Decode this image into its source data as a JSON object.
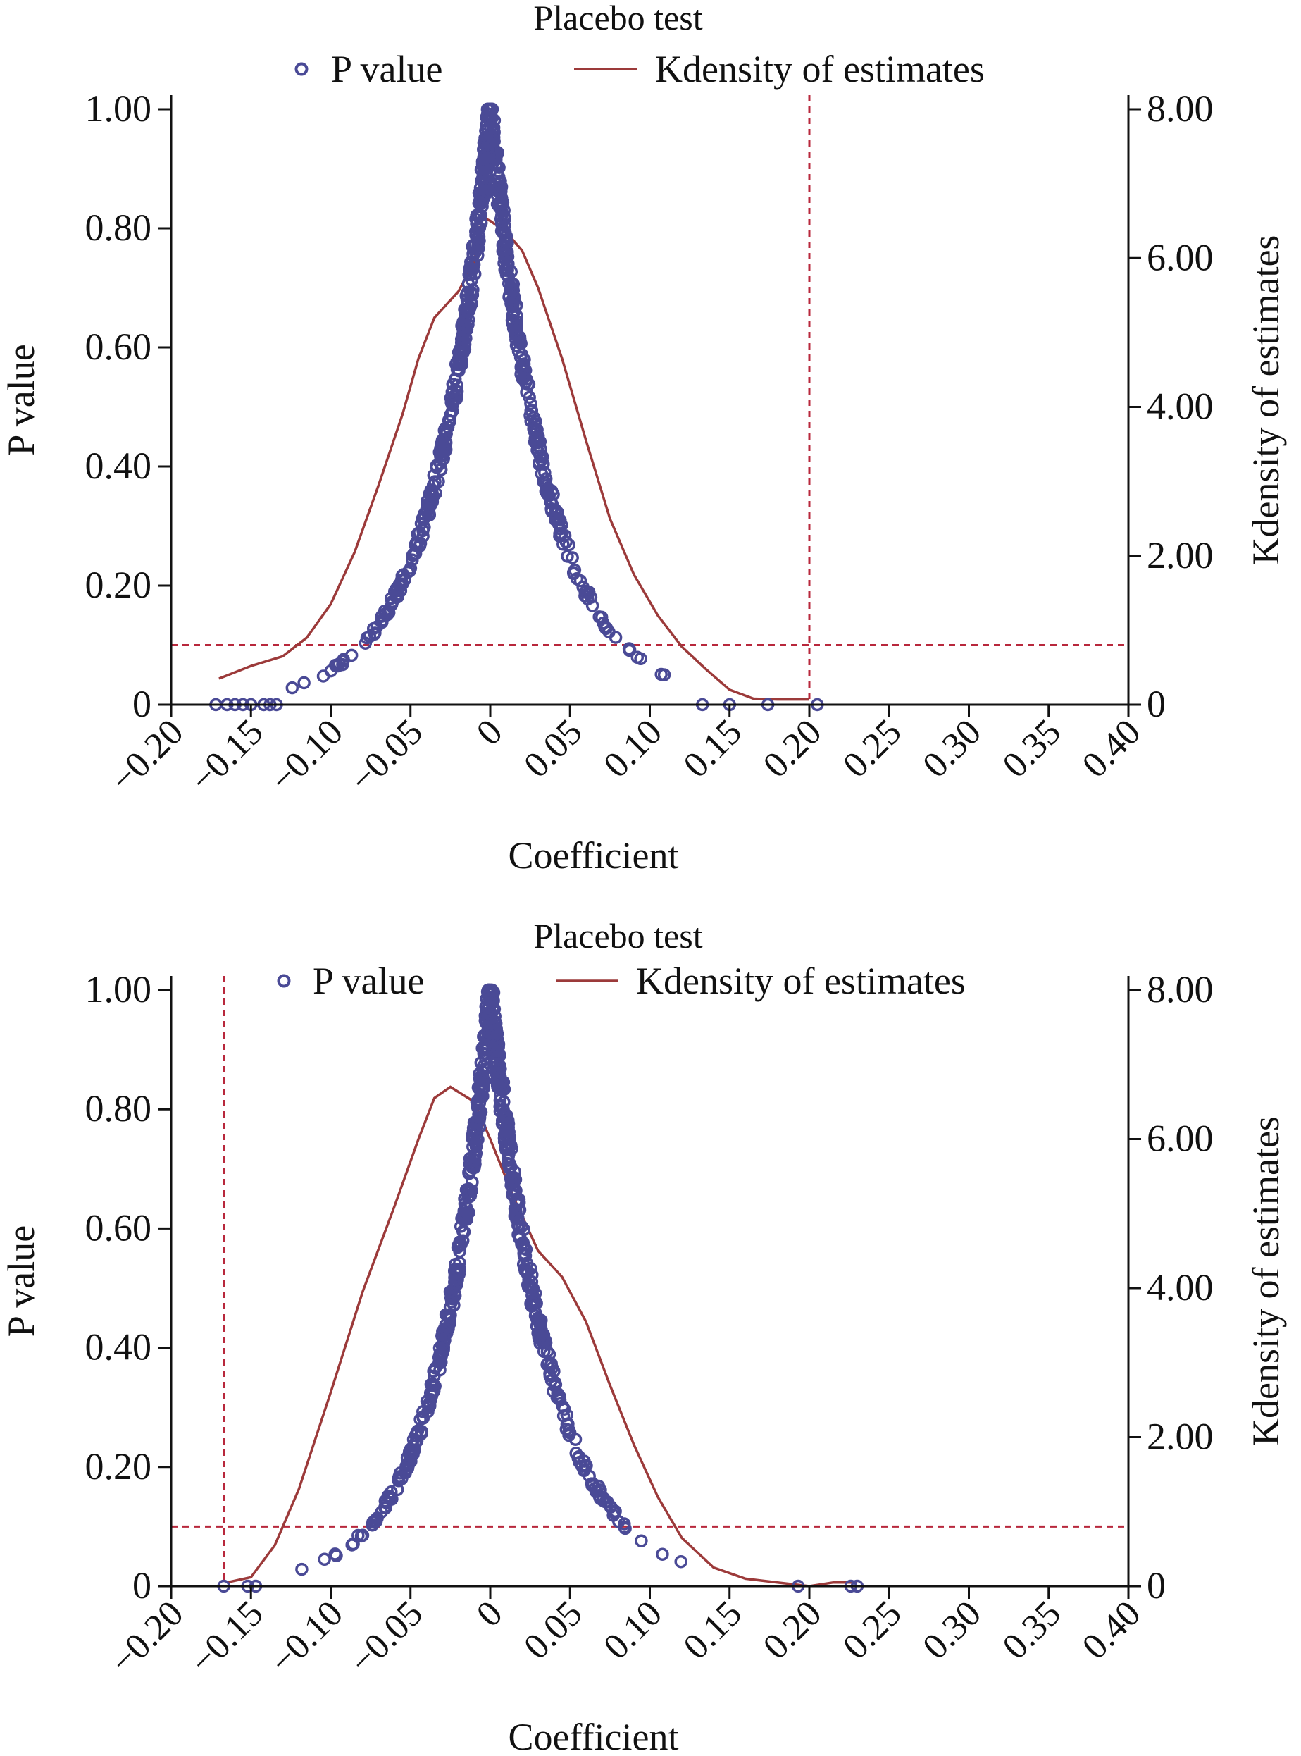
{
  "colors": {
    "p_value": "#4a4a96",
    "kdensity": "#9c3a3a",
    "reference_line": "#b8283c",
    "axis": "#111111",
    "background": "#ffffff"
  },
  "chart_data": [
    {
      "type": "scatter",
      "title": "Placebo test",
      "xlabel": "Coefficient",
      "ylabel": "P value",
      "y2label": "Kdensity of estimates",
      "xlim": [
        -0.2,
        0.4
      ],
      "ylim": [
        0,
        1
      ],
      "y2lim": [
        0,
        8
      ],
      "x_ticks": [
        -0.2,
        -0.15,
        -0.1,
        -0.05,
        0,
        0.05,
        0.1,
        0.15,
        0.2,
        0.25,
        0.3,
        0.35,
        0.4
      ],
      "x_tick_labels": [
        "−0.20",
        "−0.15",
        "−0.10",
        "−0.05",
        "0",
        "0.05",
        "0.10",
        "0.15",
        "0.20",
        "0.25",
        "0.30",
        "0.35",
        "0.40"
      ],
      "y_ticks": [
        0,
        0.2,
        0.4,
        0.6,
        0.8,
        1.0
      ],
      "y_tick_labels": [
        "0",
        "0.20",
        "0.40",
        "0.60",
        "0.80",
        "1.00"
      ],
      "y2_ticks": [
        0,
        2,
        4,
        6,
        8
      ],
      "y2_tick_labels": [
        "0",
        "2.00",
        "4.00",
        "6.00",
        "8.00"
      ],
      "grid": false,
      "legend": {
        "position": "top",
        "items": [
          "P value",
          "Kdensity of estimates"
        ]
      },
      "reference_lines": {
        "vertical_x": 0.2,
        "horizontal_p": 0.1
      },
      "series": [
        {
          "name": "P value",
          "kind": "scatter",
          "axis": "left",
          "profile": {
            "peak_x": 0.0,
            "spread_left": 0.035,
            "spread_right": 0.036,
            "shape": "exp-abs",
            "x_range": [
              -0.17,
              0.135
            ],
            "points": 620
          },
          "outliers": [
            [
              -0.172,
              0
            ],
            [
              -0.165,
              0
            ],
            [
              -0.16,
              0
            ],
            [
              -0.155,
              0
            ],
            [
              -0.15,
              0
            ],
            [
              -0.142,
              0
            ],
            [
              -0.138,
              0
            ],
            [
              -0.134,
              0
            ],
            [
              0.133,
              0
            ],
            [
              0.15,
              0
            ],
            [
              0.174,
              0
            ],
            [
              0.205,
              0
            ]
          ]
        },
        {
          "name": "Kdensity of estimates",
          "kind": "line",
          "axis": "right",
          "points": [
            [
              -0.17,
              0.35
            ],
            [
              -0.15,
              0.52
            ],
            [
              -0.13,
              0.65
            ],
            [
              -0.115,
              0.9
            ],
            [
              -0.1,
              1.35
            ],
            [
              -0.085,
              2.05
            ],
            [
              -0.07,
              2.95
            ],
            [
              -0.055,
              3.9
            ],
            [
              -0.045,
              4.65
            ],
            [
              -0.035,
              5.2
            ],
            [
              -0.02,
              5.55
            ],
            [
              -0.01,
              5.95
            ],
            [
              -0.005,
              6.55
            ],
            [
              0.0,
              6.5
            ],
            [
              0.01,
              6.35
            ],
            [
              0.02,
              6.1
            ],
            [
              0.03,
              5.6
            ],
            [
              0.045,
              4.65
            ],
            [
              0.06,
              3.55
            ],
            [
              0.075,
              2.5
            ],
            [
              0.09,
              1.75
            ],
            [
              0.105,
              1.2
            ],
            [
              0.12,
              0.78
            ],
            [
              0.135,
              0.48
            ],
            [
              0.15,
              0.2
            ],
            [
              0.165,
              0.08
            ],
            [
              0.18,
              0.07
            ],
            [
              0.2,
              0.07
            ]
          ]
        }
      ]
    },
    {
      "type": "scatter",
      "title": "Placebo test",
      "xlabel": "Coefficient",
      "ylabel": "P value",
      "y2label": "Kdensity of estimates",
      "xlim": [
        -0.2,
        0.4
      ],
      "ylim": [
        0,
        1
      ],
      "y2lim": [
        0,
        8
      ],
      "x_ticks": [
        -0.2,
        -0.15,
        -0.1,
        -0.05,
        0,
        0.05,
        0.1,
        0.15,
        0.2,
        0.25,
        0.3,
        0.35,
        0.4
      ],
      "x_tick_labels": [
        "−0.20",
        "−0.15",
        "−0.10",
        "−0.05",
        "0",
        "0.05",
        "0.10",
        "0.15",
        "0.20",
        "0.25",
        "0.30",
        "0.35",
        "0.40"
      ],
      "y_ticks": [
        0,
        0.2,
        0.4,
        0.6,
        0.8,
        1.0
      ],
      "y_tick_labels": [
        "0",
        "0.20",
        "0.40",
        "0.60",
        "0.80",
        "1.00"
      ],
      "y2_ticks": [
        0,
        2,
        4,
        6,
        8
      ],
      "y2_tick_labels": [
        "0",
        "2.00",
        "4.00",
        "6.00",
        "8.00"
      ],
      "grid": false,
      "legend": {
        "position": "top",
        "items": [
          "P value",
          "Kdensity of estimates"
        ]
      },
      "reference_lines": {
        "vertical_x": -0.167,
        "horizontal_p": 0.1
      },
      "series": [
        {
          "name": "P value",
          "kind": "scatter",
          "axis": "left",
          "profile": {
            "peak_x": 0.0,
            "spread_left": 0.033,
            "spread_right": 0.037,
            "shape": "exp-abs",
            "x_range": [
              -0.12,
              0.16
            ],
            "points": 620
          },
          "outliers": [
            [
              -0.167,
              0
            ],
            [
              -0.152,
              0
            ],
            [
              -0.147,
              0
            ],
            [
              0.193,
              0
            ],
            [
              0.226,
              0
            ],
            [
              0.23,
              0
            ]
          ]
        },
        {
          "name": "Kdensity of estimates",
          "kind": "line",
          "axis": "right",
          "points": [
            [
              -0.165,
              0.05
            ],
            [
              -0.15,
              0.12
            ],
            [
              -0.135,
              0.55
            ],
            [
              -0.12,
              1.3
            ],
            [
              -0.1,
              2.6
            ],
            [
              -0.08,
              3.95
            ],
            [
              -0.06,
              5.1
            ],
            [
              -0.045,
              6.0
            ],
            [
              -0.035,
              6.55
            ],
            [
              -0.025,
              6.7
            ],
            [
              -0.01,
              6.5
            ],
            [
              0.0,
              6.0
            ],
            [
              0.015,
              5.2
            ],
            [
              0.03,
              4.5
            ],
            [
              0.045,
              4.15
            ],
            [
              0.06,
              3.55
            ],
            [
              0.075,
              2.7
            ],
            [
              0.09,
              1.9
            ],
            [
              0.105,
              1.2
            ],
            [
              0.12,
              0.65
            ],
            [
              0.14,
              0.25
            ],
            [
              0.16,
              0.1
            ],
            [
              0.18,
              0.05
            ],
            [
              0.2,
              0.0
            ],
            [
              0.215,
              0.05
            ],
            [
              0.23,
              0.05
            ]
          ]
        }
      ]
    }
  ]
}
